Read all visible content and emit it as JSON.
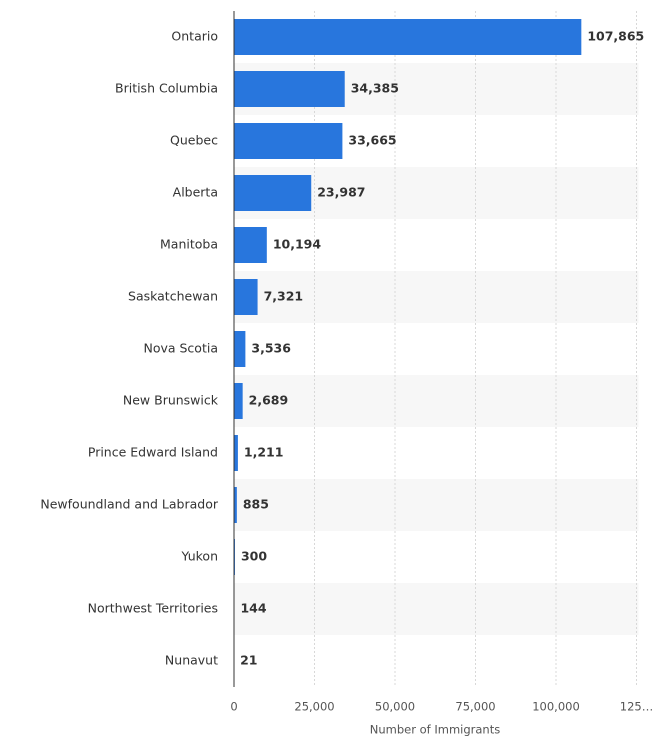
{
  "chart_data": {
    "type": "bar",
    "orientation": "horizontal",
    "x_label": "Number of Immigrants",
    "categories": [
      "Ontario",
      "British Columbia",
      "Quebec",
      "Alberta",
      "Manitoba",
      "Saskatchewan",
      "Nova Scotia",
      "New Brunswick",
      "Prince Edward Island",
      "Newfoundland and Labrador",
      "Yukon",
      "Northwest Territories",
      "Nunavut"
    ],
    "values": [
      107865,
      34385,
      33665,
      23987,
      10194,
      7321,
      3536,
      2689,
      1211,
      885,
      300,
      144,
      21
    ],
    "value_labels": [
      "107,865",
      "34,385",
      "33,665",
      "23,987",
      "10,194",
      "7,321",
      "3,536",
      "2,689",
      "1,211",
      "885",
      "300",
      "144",
      "21"
    ],
    "color": "#2876dd",
    "xlim": [
      0,
      125000
    ],
    "xticks": [
      0,
      {
        "value": 25000,
        "label": "25,000"
      },
      {
        "value": 50000,
        "label": "50,000"
      },
      {
        "value": 75000,
        "label": "75,000"
      },
      {
        "value": 100000,
        "label": "100,000"
      },
      {
        "value": 125000,
        "label": "125…"
      }
    ],
    "grid": true
  }
}
